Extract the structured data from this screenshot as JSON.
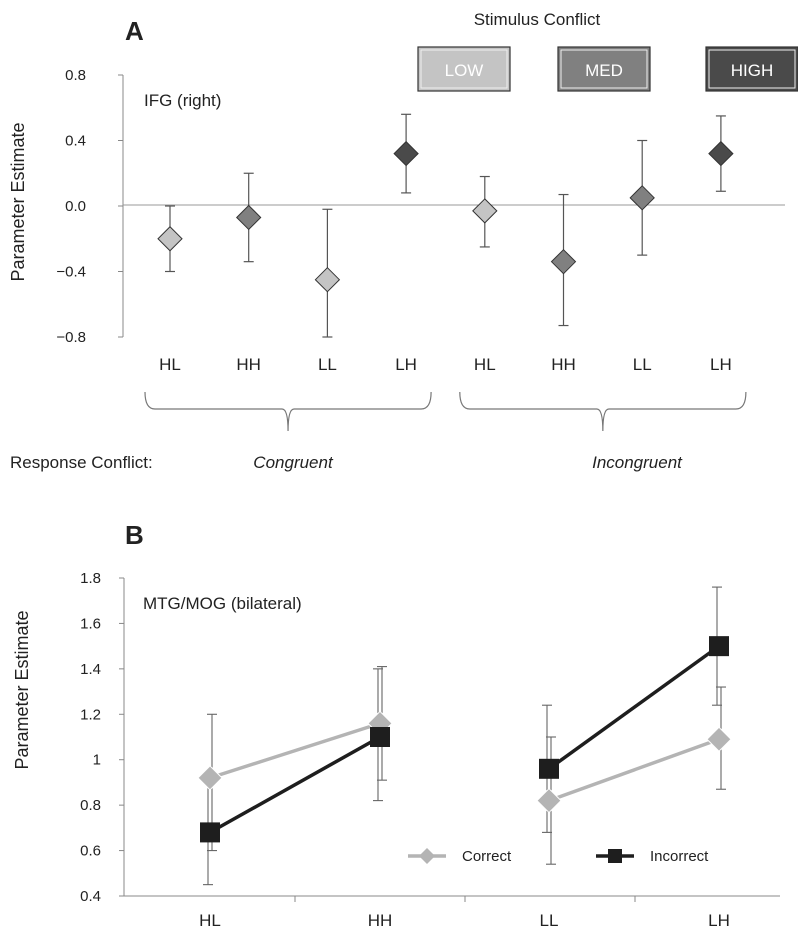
{
  "chart_data": [
    {
      "panel": "A",
      "type": "scatter",
      "ylabel": "Parameter Estimate",
      "annotation": "IFG (right)",
      "ylim": [
        -0.8,
        0.8
      ],
      "yticks": [
        "0.8",
        "0.4",
        "0.0",
        "−0.4",
        "−0.8"
      ],
      "ytick_values": [
        0.8,
        0.4,
        0.0,
        -0.4,
        -0.8
      ],
      "categories": [
        "HL",
        "HH",
        "LL",
        "LH",
        "HL",
        "HH",
        "LL",
        "LH"
      ],
      "levels": [
        "low",
        "med",
        "low",
        "high",
        "low",
        "med",
        "med",
        "high"
      ],
      "values": [
        -0.2,
        -0.07,
        -0.45,
        0.32,
        -0.03,
        -0.34,
        0.05,
        0.32
      ],
      "err_low": [
        -0.4,
        -0.34,
        -0.8,
        0.08,
        -0.25,
        -0.73,
        -0.3,
        0.09
      ],
      "err_high": [
        0.0,
        0.2,
        -0.02,
        0.56,
        0.18,
        0.07,
        0.4,
        0.55
      ],
      "stimulus_conflict": {
        "title": "Stimulus Conflict",
        "levels": [
          {
            "key": "low",
            "label": "LOW",
            "color": "#c4c4c4"
          },
          {
            "key": "med",
            "label": "MED",
            "color": "#808080"
          },
          {
            "key": "high",
            "label": "HIGH",
            "color": "#4a4a4a"
          }
        ]
      },
      "response_conflict": {
        "label": "Response Conflict:",
        "groups": [
          {
            "label": "Congruent",
            "span": [
              0,
              3
            ]
          },
          {
            "label": "Incongruent",
            "span": [
              4,
              7
            ]
          }
        ]
      },
      "grid": false
    },
    {
      "panel": "B",
      "type": "line",
      "ylabel": "Parameter Estimate",
      "annotation": "MTG/MOG (bilateral)",
      "ylim": [
        0.4,
        1.8
      ],
      "yticks": [
        "1.8",
        "1.6",
        "1.4",
        "1.2",
        "1",
        "0.8",
        "0.6",
        "0.4"
      ],
      "ytick_values": [
        1.8,
        1.6,
        1.4,
        1.2,
        1.0,
        0.8,
        0.6,
        0.4
      ],
      "categories": [
        "HL",
        "HH",
        "LL",
        "LH"
      ],
      "segments": [
        [
          0,
          1
        ],
        [
          2,
          3
        ]
      ],
      "series": [
        {
          "name": "Correct",
          "marker": "diamond",
          "color": "#b4b4b4",
          "values": [
            0.92,
            1.16,
            0.82,
            1.09
          ],
          "err_low": [
            0.6,
            0.91,
            0.54,
            0.87
          ],
          "err_high": [
            1.2,
            1.41,
            1.1,
            1.32
          ]
        },
        {
          "name": "Incorrect",
          "marker": "square",
          "color": "#1e1e1e",
          "values": [
            0.68,
            1.1,
            0.96,
            1.5
          ],
          "err_low": [
            0.45,
            0.82,
            0.68,
            1.24
          ],
          "err_high": [
            0.92,
            1.4,
            1.24,
            1.76
          ]
        }
      ],
      "legend_position": "bottom-right",
      "grid": false
    }
  ]
}
